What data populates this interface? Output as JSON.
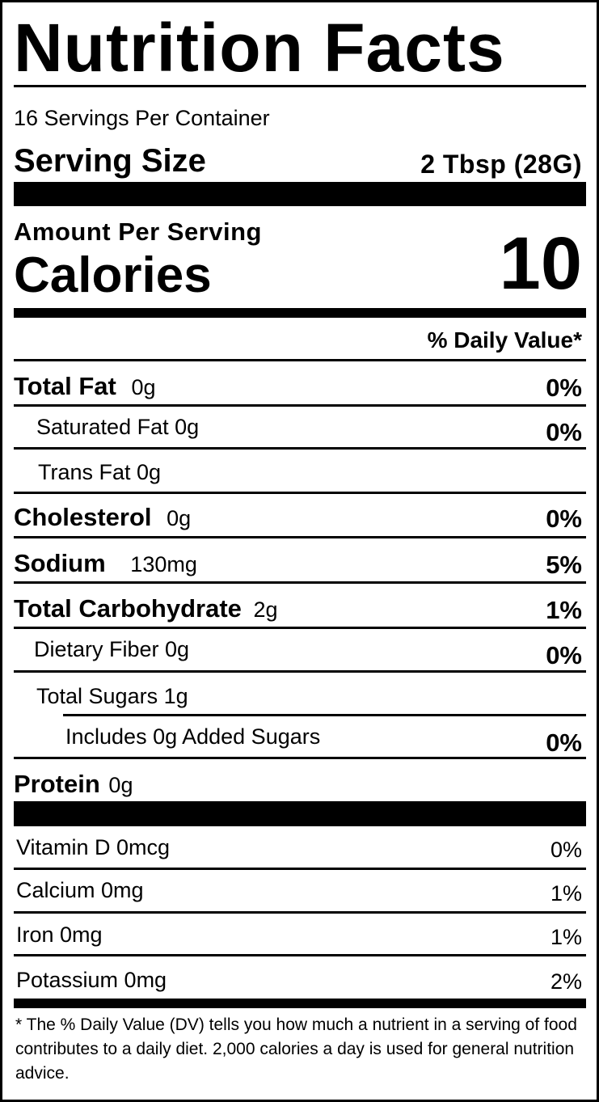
{
  "title": "Nutrition Facts",
  "servings_per_container": "16 Servings Per Container",
  "serving_size": {
    "label": "Serving Size",
    "value": "2 Tbsp (28G)"
  },
  "amount_per_serving": "Amount Per Serving",
  "calories": {
    "label": "Calories",
    "value": "10"
  },
  "daily_value_header": "% Daily Value*",
  "nutrients": [
    {
      "label": "Total Fat",
      "amount": "0g",
      "dv": "0%"
    },
    {
      "label": "Saturated Fat 0g",
      "dv": "0%"
    },
    {
      "label": "Trans Fat 0g"
    },
    {
      "label": "Cholesterol",
      "amount": "0g",
      "dv": "0%"
    },
    {
      "label": "Sodium",
      "amount": "130mg",
      "dv": "5%"
    },
    {
      "label": "Total Carbohydrate",
      "amount": "2g",
      "dv": "1%"
    },
    {
      "label": "Dietary Fiber 0g",
      "dv": "0%"
    },
    {
      "label": "Total Sugars 1g"
    },
    {
      "label": "Includes 0g Added Sugars",
      "dv": "0%"
    },
    {
      "label": "Protein",
      "amount": "0g"
    }
  ],
  "vitamins": [
    {
      "label": "Vitamin D 0mcg",
      "dv": "0%"
    },
    {
      "label": "Calcium 0mg",
      "dv": "1%"
    },
    {
      "label": "Iron 0mg",
      "dv": "1%"
    },
    {
      "label": "Potassium 0mg",
      "dv": "2%"
    }
  ],
  "footnote": "* The % Daily Value (DV) tells you how much a nutrient in a serving of food contributes to a daily diet. 2,000 calories a day is used for general nutrition advice."
}
